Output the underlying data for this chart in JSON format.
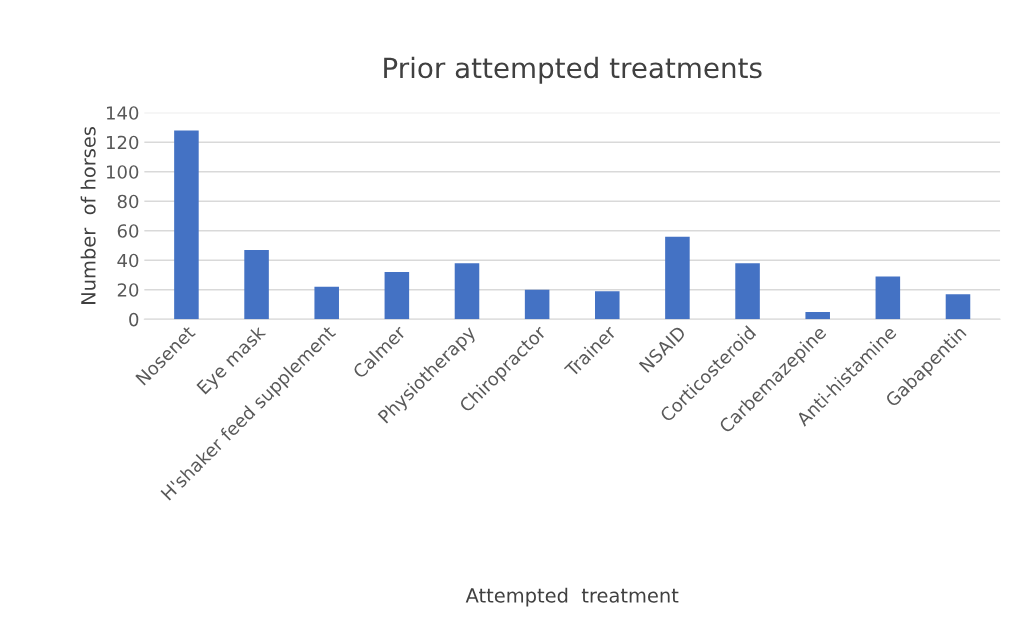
{
  "chart_data": {
    "type": "bar",
    "title": "Prior attempted treatments",
    "xlabel": "Attempted  treatment",
    "ylabel": "Number  of horses",
    "categories": [
      "Nosenet",
      "Eye mask",
      "H'shaker feed supplement",
      "Calmer",
      "Physiotherapy",
      "Chiropractor",
      "Trainer",
      "NSAID",
      "Corticosteroid",
      "Carbemazepine",
      "Anti-histamine",
      "Gabapentin"
    ],
    "values": [
      128,
      47,
      22,
      32,
      38,
      20,
      19,
      56,
      38,
      5,
      29,
      17
    ],
    "color": "#4472c4",
    "ylim": [
      0,
      140
    ],
    "yticks": [
      0,
      20,
      40,
      60,
      80,
      100,
      120,
      140
    ],
    "grid": "y",
    "legend": false
  }
}
